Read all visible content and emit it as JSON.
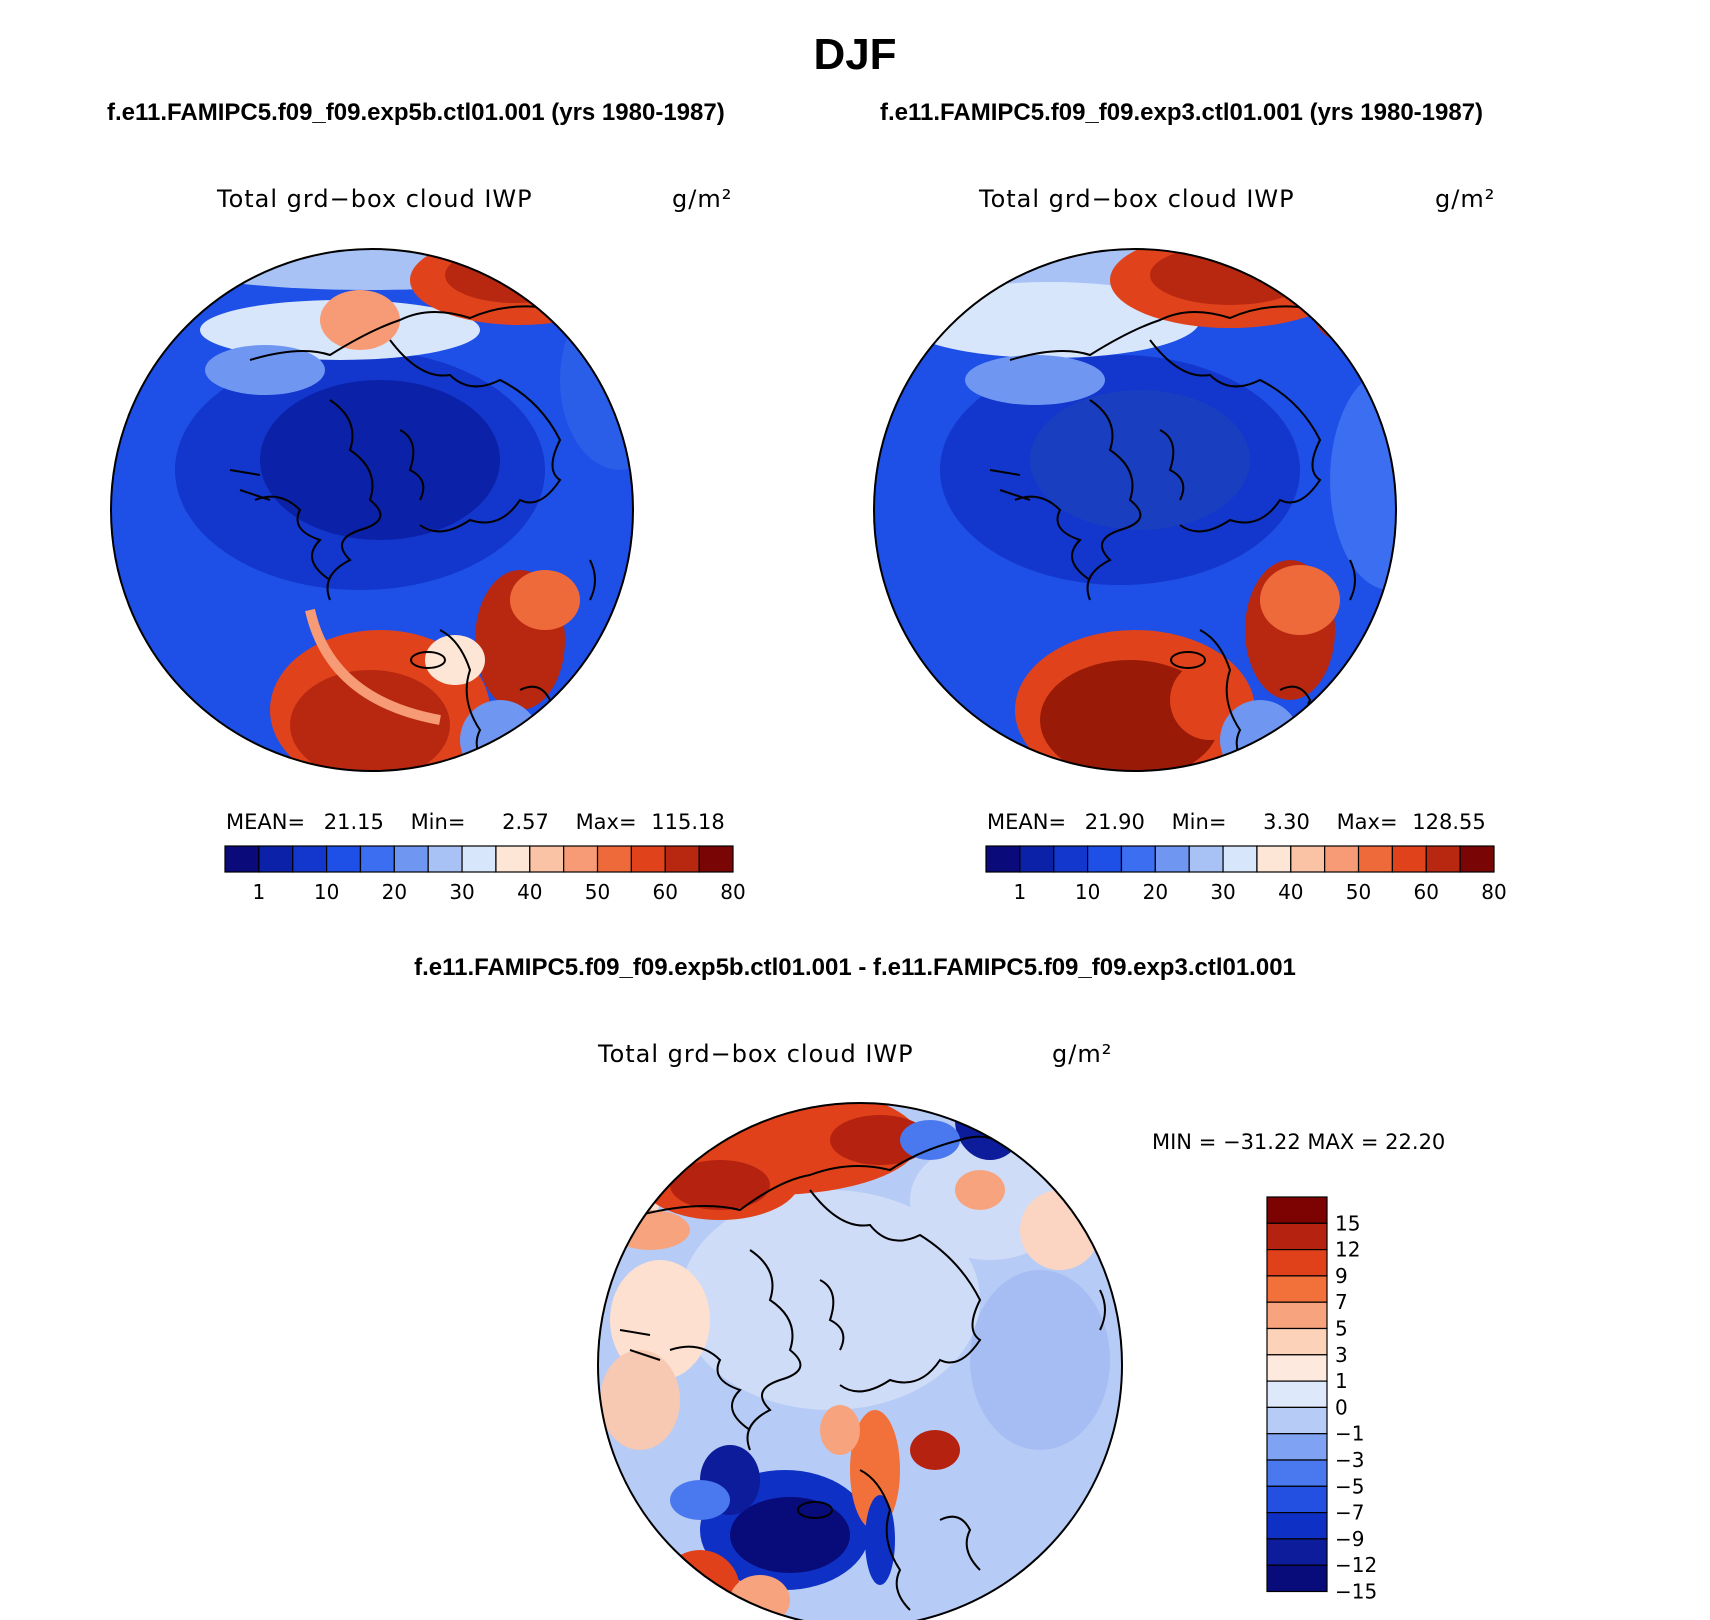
{
  "figure": {
    "title": "DJF",
    "case_a_header": "f.e11.FAMIPC5.f09_f09.exp5b.ctl01.001 (yrs 1980-1987)",
    "case_b_header": "f.e11.FAMIPC5.f09_f09.exp3.ctl01.001 (yrs 1980-1987)",
    "diff_header": "f.e11.FAMIPC5.f09_f09.exp5b.ctl01.001 - f.e11.FAMIPC5.f09_f09.exp3.ctl01.001"
  },
  "panels": [
    {
      "variable": "Total grd−box cloud IWP",
      "units": "g/m²",
      "stats": {
        "mean_label": "MEAN=",
        "mean": "21.15",
        "min_label": "Min=",
        "min": "2.57",
        "max_label": "Max=",
        "max": "115.18"
      }
    },
    {
      "variable": "Total grd−box cloud IWP",
      "units": "g/m²",
      "stats": {
        "mean_label": "MEAN=",
        "mean": "21.90",
        "min_label": "Min=",
        "min": "3.30",
        "max_label": "Max=",
        "max": "128.55"
      }
    },
    {
      "variable": "Total grd−box cloud IWP",
      "units": "g/m²",
      "stats_text": "MIN = −31.22 MAX =  22.20"
    }
  ],
  "abs_colorbar": {
    "colors": [
      "#0a0a7a",
      "#0b22a8",
      "#1336cc",
      "#1e4fe6",
      "#3b6ef0",
      "#6f97f2",
      "#a8c2f6",
      "#d8e6fb",
      "#fde6d6",
      "#fbc3a6",
      "#f69b75",
      "#ef6a3a",
      "#e0431c",
      "#b82810",
      "#7a0505"
    ],
    "tick_labels": [
      "1",
      "10",
      "20",
      "30",
      "40",
      "50",
      "60",
      "80"
    ]
  },
  "diff_colorbar": {
    "colors_top_to_bottom": [
      "#7d0303",
      "#b52310",
      "#e0411a",
      "#f2703a",
      "#f7a47e",
      "#fcd2b9",
      "#fde9dd",
      "#dde9fb",
      "#b6cbf5",
      "#7fa2f2",
      "#4a78ee",
      "#2450e2",
      "#0e30c4",
      "#0c1c9a",
      "#080c7a"
    ],
    "tick_labels_top_to_bottom": [
      "15",
      "12",
      "9",
      "7",
      "5",
      "3",
      "1",
      "0",
      "−1",
      "−3",
      "−5",
      "−7",
      "−9",
      "−12",
      "−15"
    ]
  }
}
